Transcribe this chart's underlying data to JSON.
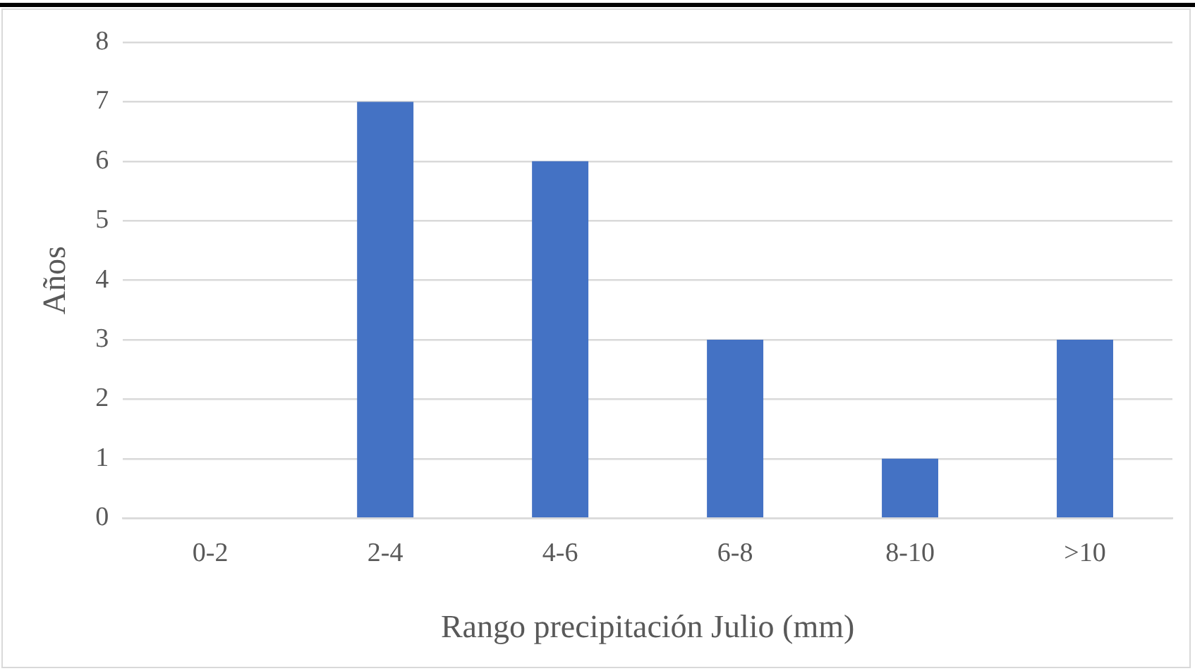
{
  "chart_data": {
    "type": "bar",
    "xlabel": "Rango precipitación Julio (mm)",
    "ylabel": "Años",
    "categories": [
      "0-2",
      "2-4",
      "4-6",
      "6-8",
      "8-10",
      ">10"
    ],
    "values": [
      0,
      7,
      6,
      3,
      1,
      3
    ],
    "color": "#4472c4",
    "ylim": [
      0,
      8
    ],
    "yticks": [
      0,
      1,
      2,
      3,
      4,
      5,
      6,
      7,
      8
    ],
    "grid": "y",
    "legend": false
  }
}
